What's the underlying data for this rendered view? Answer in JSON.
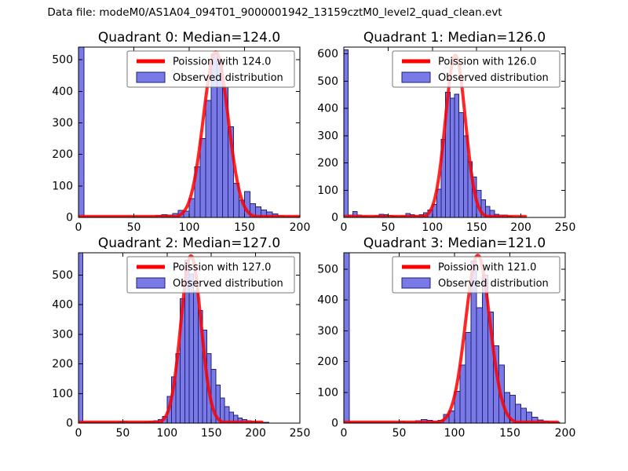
{
  "figure": {
    "title": "Data file: modeM0/AS1A04_094T01_9000001942_13159cztM0_level2_quad_clean.evt",
    "background": "#ffffff"
  },
  "colors": {
    "bar_fill": "#7a7ae6",
    "bar_edge": "#20207a",
    "curve": "#ff0000",
    "axis": "#000000",
    "text": "#000000",
    "legend_border": "#777777",
    "legend_fill": "#ffffff"
  },
  "chart_data": [
    {
      "type": "histogram+line",
      "title": "Quadrant 0: Median=124.0",
      "xlabel": "",
      "ylabel": "",
      "xlim": [
        0,
        200
      ],
      "ylim": [
        0,
        540
      ],
      "xticks": [
        0,
        50,
        100,
        150,
        200
      ],
      "yticks": [
        0,
        100,
        200,
        300,
        400,
        500
      ],
      "grid": false,
      "legend_position": "upper right",
      "hist_label": "Observed distribution",
      "bin_start": 0,
      "bin_width": 5,
      "bar_heights": [
        600,
        2,
        2,
        2,
        2,
        2,
        2,
        2,
        2,
        2,
        2,
        2,
        2,
        3,
        6,
        9,
        7,
        12,
        22,
        20,
        60,
        160,
        250,
        371,
        517,
        487,
        413,
        288,
        108,
        55,
        82,
        44,
        34,
        24,
        17,
        11,
        5,
        3,
        3,
        2
      ],
      "poisson": {
        "label": "Poission with 124.0",
        "mu": 124,
        "amplitude": 525,
        "x_end": 200
      }
    },
    {
      "type": "histogram+line",
      "title": "Quadrant 1: Median=126.0",
      "xlabel": "",
      "ylabel": "",
      "xlim": [
        0,
        250
      ],
      "ylim": [
        0,
        625
      ],
      "xticks": [
        0,
        50,
        100,
        150,
        200,
        250
      ],
      "yticks": [
        0,
        100,
        200,
        300,
        400,
        500,
        600
      ],
      "grid": false,
      "legend_position": "upper right",
      "hist_label": "Observed distribution",
      "bin_start": 0,
      "bin_width": 5,
      "bar_heights": [
        615,
        8,
        22,
        8,
        4,
        3,
        3,
        6,
        12,
        10,
        7,
        4,
        3,
        4,
        14,
        10,
        6,
        10,
        18,
        28,
        48,
        104,
        286,
        460,
        438,
        452,
        385,
        300,
        205,
        148,
        100,
        65,
        40,
        26,
        12,
        9,
        8,
        4,
        2,
        2,
        2,
        0,
        0,
        0,
        0,
        0,
        0,
        0,
        0,
        0
      ],
      "poisson": {
        "label": "Poission with 126.0",
        "mu": 126,
        "amplitude": 595,
        "x_end": 205
      }
    },
    {
      "type": "histogram+line",
      "title": "Quadrant 2: Median=127.0",
      "xlabel": "",
      "ylabel": "",
      "xlim": [
        0,
        250
      ],
      "ylim": [
        0,
        575
      ],
      "xticks": [
        0,
        50,
        100,
        150,
        200,
        250
      ],
      "yticks": [
        0,
        100,
        200,
        300,
        400,
        500
      ],
      "grid": false,
      "legend_position": "upper right",
      "hist_label": "Observed distribution",
      "bin_start": 0,
      "bin_width": 5,
      "bar_heights": [
        650,
        2,
        2,
        2,
        2,
        2,
        2,
        2,
        2,
        4,
        5,
        3,
        2,
        2,
        3,
        4,
        5,
        8,
        12,
        22,
        90,
        156,
        235,
        420,
        550,
        503,
        446,
        380,
        314,
        235,
        182,
        129,
        85,
        55,
        37,
        26,
        17,
        12,
        8,
        5,
        4,
        3,
        2,
        0,
        0,
        0,
        0,
        0,
        0,
        0
      ],
      "poisson": {
        "label": "Poission with 127.0",
        "mu": 127,
        "amplitude": 565,
        "x_end": 207
      }
    },
    {
      "type": "histogram+line",
      "title": "Quadrant 3: Median=121.0",
      "xlabel": "",
      "ylabel": "",
      "xlim": [
        0,
        200
      ],
      "ylim": [
        0,
        553
      ],
      "xticks": [
        0,
        50,
        100,
        150,
        200
      ],
      "yticks": [
        0,
        100,
        200,
        300,
        400,
        500
      ],
      "grid": false,
      "legend_position": "upper right",
      "hist_label": "Observed distribution",
      "bin_start": 0,
      "bin_width": 5,
      "bar_heights": [
        600,
        2,
        2,
        2,
        2,
        2,
        2,
        2,
        2,
        2,
        5,
        3,
        2,
        8,
        11,
        9,
        5,
        9,
        28,
        40,
        103,
        188,
        294,
        526,
        374,
        480,
        361,
        251,
        188,
        99,
        90,
        61,
        48,
        36,
        19,
        10,
        6,
        3,
        2,
        0
      ],
      "poisson": {
        "label": "Poission with 121.0",
        "mu": 121,
        "amplitude": 545,
        "x_end": 193
      }
    }
  ]
}
